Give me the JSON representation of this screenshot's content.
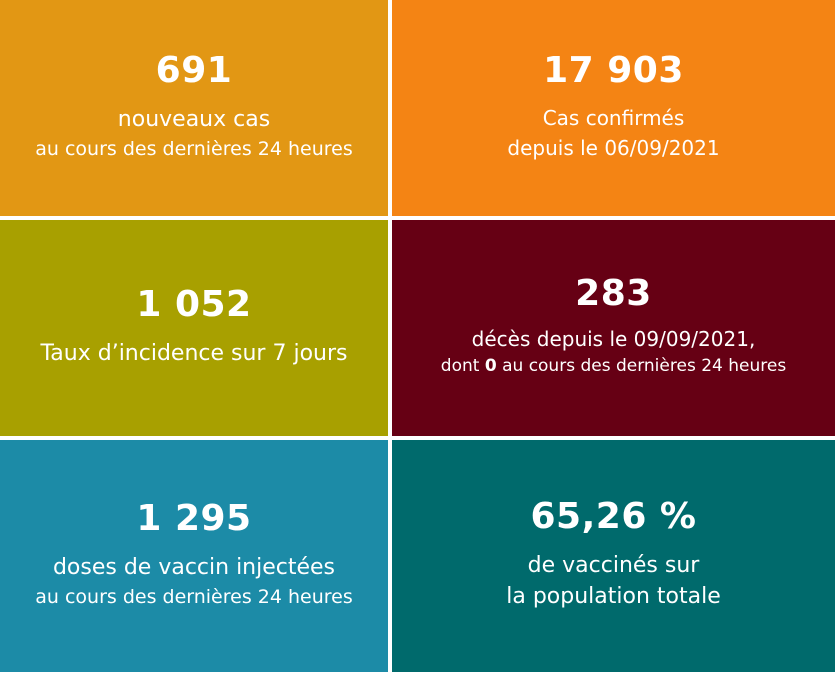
{
  "tiles": {
    "new_cases": {
      "value": "691",
      "line1": "nouveaux cas",
      "line2": "au cours des dernières 24 heures"
    },
    "confirmed_cases": {
      "value": "17 903",
      "line1": "Cas confirmés",
      "line2": "depuis le 06/09/2021"
    },
    "incidence": {
      "value": "1 052",
      "line1": "Taux d’incidence sur 7 jours"
    },
    "deaths": {
      "value": "283",
      "line1": "décès depuis le 09/09/2021,",
      "line2_prefix": "dont",
      "line2_bold": "0",
      "line2_suffix": "au cours des dernières 24 heures"
    },
    "vaccine_doses": {
      "value": "1 295",
      "line1": "doses de vaccin injectées",
      "line2": "au cours des dernières 24 heures"
    },
    "vaccination_rate": {
      "value": "65,26 %",
      "line1": "de vaccinés sur",
      "line2": "la population totale"
    }
  },
  "colors": {
    "new_cases": "#e29714",
    "confirmed_cases": "#f48414",
    "incidence": "#a8a000",
    "deaths": "#660014",
    "vaccine_doses": "#1c8ba7",
    "vaccination_rate": "#006a6c"
  }
}
